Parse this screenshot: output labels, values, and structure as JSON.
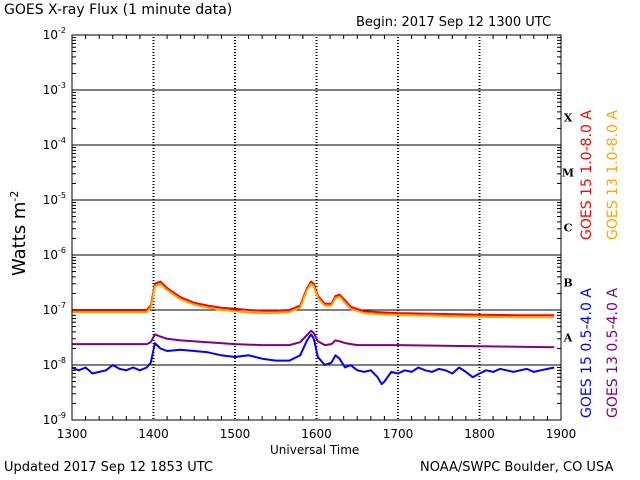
{
  "header": {
    "title": "GOES X-ray Flux (1 minute data)",
    "begin": "Begin: 2017 Sep 12 1300 UTC"
  },
  "footer": {
    "updated": "Updated 2017 Sep 12 1853 UTC",
    "credit": "NOAA/SWPC Boulder, CO USA"
  },
  "chart_data": {
    "type": "line",
    "title": "GOES X-ray Flux (1 minute data)",
    "xlabel": "Universal Time",
    "ylabel": "Watts m-2",
    "ylabel_base": "Watts m",
    "ylabel_exp": "-2",
    "ylog": true,
    "grid": true,
    "xlim": [
      "1300",
      "1900"
    ],
    "ylim": [
      1e-09,
      0.01
    ],
    "x_ticks": [
      "1300",
      "1400",
      "1500",
      "1600",
      "1700",
      "1800",
      "1900"
    ],
    "y_ticks": [
      {
        "value": 1e-09,
        "label_base": "10",
        "label_exp": "-9"
      },
      {
        "value": 1e-08,
        "label_base": "10",
        "label_exp": "-8"
      },
      {
        "value": 1e-07,
        "label_base": "10",
        "label_exp": "-7"
      },
      {
        "value": 1e-06,
        "label_base": "10",
        "label_exp": "-6"
      },
      {
        "value": 1e-05,
        "label_base": "10",
        "label_exp": "-5"
      },
      {
        "value": 0.0001,
        "label_base": "10",
        "label_exp": "-4"
      },
      {
        "value": 0.001,
        "label_base": "10",
        "label_exp": "-3"
      },
      {
        "value": 0.01,
        "label_base": "10",
        "label_exp": "-2"
      }
    ],
    "flare_classes": [
      {
        "label": "X",
        "value": 0.000316
      },
      {
        "label": "M",
        "value": 3.16e-05
      },
      {
        "label": "C",
        "value": 3.16e-06
      },
      {
        "label": "B",
        "value": 3.16e-07
      },
      {
        "label": "A",
        "value": 3.16e-08
      }
    ],
    "legend": {
      "placement": "right",
      "entries": [
        {
          "name": "GOES 15 1.0-8.0 A",
          "color": "#ff0000"
        },
        {
          "name": "GOES 13 1.0-8.0 A",
          "color": "#ffa500"
        },
        {
          "name": "GOES 15 0.5-4.0 A",
          "color": "#0000ff"
        },
        {
          "name": "GOES 13 0.5-4.0 A",
          "color": "#800080"
        }
      ]
    },
    "series": [
      {
        "name": "GOES 15 1.0-8.0 A",
        "color": "#ff0000",
        "x": [
          "1300",
          "1330",
          "1355",
          "1358",
          "1401",
          "1405",
          "1410",
          "1420",
          "1430",
          "1440",
          "1450",
          "1500",
          "1510",
          "1520",
          "1530",
          "1540",
          "1548",
          "1553",
          "1556",
          "1558",
          "1601",
          "1606",
          "1611",
          "1614",
          "1617",
          "1621",
          "1625",
          "1635",
          "1650",
          "1700",
          "1730",
          "1800",
          "1830",
          "1855"
        ],
        "values": [
          1e-07,
          1e-07,
          1e-07,
          1.2e-07,
          3e-07,
          3.3e-07,
          2.5e-07,
          1.7e-07,
          1.35e-07,
          1.2e-07,
          1.1e-07,
          1.05e-07,
          1e-07,
          9.7e-08,
          9.7e-08,
          1e-07,
          1.2e-07,
          2.5e-07,
          3.3e-07,
          3e-07,
          1.8e-07,
          1.3e-07,
          1.3e-07,
          1.8e-07,
          1.9e-07,
          1.5e-07,
          1.15e-07,
          9.5e-08,
          9e-08,
          8.8e-08,
          8.5e-08,
          8.2e-08,
          8e-08,
          8e-08
        ]
      },
      {
        "name": "GOES 13 1.0-8.0 A",
        "color": "#ffa500",
        "x": [
          "1300",
          "1330",
          "1355",
          "1358",
          "1401",
          "1405",
          "1410",
          "1420",
          "1430",
          "1440",
          "1450",
          "1500",
          "1510",
          "1520",
          "1530",
          "1540",
          "1548",
          "1553",
          "1556",
          "1558",
          "1601",
          "1606",
          "1611",
          "1614",
          "1617",
          "1621",
          "1625",
          "1635",
          "1650",
          "1700",
          "1730",
          "1800",
          "1830",
          "1855"
        ],
        "values": [
          9.2e-08,
          9.2e-08,
          9.2e-08,
          1.1e-07,
          2.7e-07,
          3e-07,
          2.3e-07,
          1.55e-07,
          1.25e-07,
          1.1e-07,
          1e-07,
          9.5e-08,
          9e-08,
          8.8e-08,
          8.8e-08,
          9.2e-08,
          1.1e-07,
          2.3e-07,
          3e-07,
          2.7e-07,
          1.65e-07,
          1.2e-07,
          1.2e-07,
          1.65e-07,
          1.75e-07,
          1.35e-07,
          1.05e-07,
          8.8e-08,
          8.3e-08,
          8.1e-08,
          7.8e-08,
          7.5e-08,
          7.4e-08,
          7.4e-08
        ]
      },
      {
        "name": "GOES 13 0.5-4.0 A",
        "color": "#800080",
        "x": [
          "1300",
          "1330",
          "1355",
          "1358",
          "1401",
          "1405",
          "1410",
          "1420",
          "1440",
          "1500",
          "1520",
          "1540",
          "1548",
          "1553",
          "1556",
          "1558",
          "1601",
          "1606",
          "1611",
          "1614",
          "1617",
          "1621",
          "1630",
          "1700",
          "1800",
          "1855"
        ],
        "values": [
          2.4e-08,
          2.4e-08,
          2.4e-08,
          2.6e-08,
          3.6e-08,
          3.3e-08,
          3e-08,
          2.8e-08,
          2.6e-08,
          2.4e-08,
          2.3e-08,
          2.3e-08,
          2.6e-08,
          3.5e-08,
          4.2e-08,
          3.8e-08,
          2.7e-08,
          2.3e-08,
          2.4e-08,
          2.8e-08,
          2.7e-08,
          2.5e-08,
          2.3e-08,
          2.3e-08,
          2.2e-08,
          2.1e-08
        ]
      },
      {
        "name": "GOES 15 0.5-4.0 A",
        "color": "#0000ff",
        "x": [
          "1300",
          "1305",
          "1310",
          "1315",
          "1320",
          "1325",
          "1330",
          "1335",
          "1340",
          "1345",
          "1350",
          "1355",
          "1358",
          "1401",
          "1405",
          "1410",
          "1420",
          "1430",
          "1440",
          "1450",
          "1500",
          "1510",
          "1520",
          "1530",
          "1540",
          "1548",
          "1553",
          "1556",
          "1558",
          "1601",
          "1606",
          "1611",
          "1614",
          "1617",
          "1621",
          "1625",
          "1630",
          "1635",
          "1640",
          "1645",
          "1648",
          "1650",
          "1655",
          "1700",
          "1705",
          "1710",
          "1715",
          "1720",
          "1725",
          "1730",
          "1735",
          "1740",
          "1745",
          "1750",
          "1755",
          "1800",
          "1805",
          "1810",
          "1815",
          "1820",
          "1825",
          "1830",
          "1835",
          "1840",
          "1845",
          "1850",
          "1855"
        ],
        "values": [
          9e-09,
          8e-09,
          9e-09,
          7e-09,
          7.5e-09,
          8e-09,
          1e-08,
          8.5e-09,
          8e-09,
          9e-09,
          8e-09,
          9e-09,
          1.1e-08,
          2.5e-08,
          2e-08,
          1.8e-08,
          1.9e-08,
          1.8e-08,
          1.7e-08,
          1.5e-08,
          1.4e-08,
          1.5e-08,
          1.3e-08,
          1.2e-08,
          1.2e-08,
          1.5e-08,
          2.8e-08,
          3.6e-08,
          3e-08,
          1.4e-08,
          1e-08,
          1.1e-08,
          1.5e-08,
          1.3e-08,
          9e-09,
          1e-08,
          8e-09,
          7.5e-09,
          8e-09,
          6e-09,
          4.5e-09,
          5e-09,
          7.5e-09,
          7e-09,
          8e-09,
          7.5e-09,
          9e-09,
          8e-09,
          7.5e-09,
          8.5e-09,
          8e-09,
          7e-09,
          9e-09,
          7.5e-09,
          6e-09,
          7e-09,
          8e-09,
          7.5e-09,
          8.5e-09,
          8e-09,
          7.5e-09,
          8e-09,
          8.5e-09,
          7.5e-09,
          8e-09,
          8.5e-09,
          9e-09
        ]
      }
    ]
  }
}
